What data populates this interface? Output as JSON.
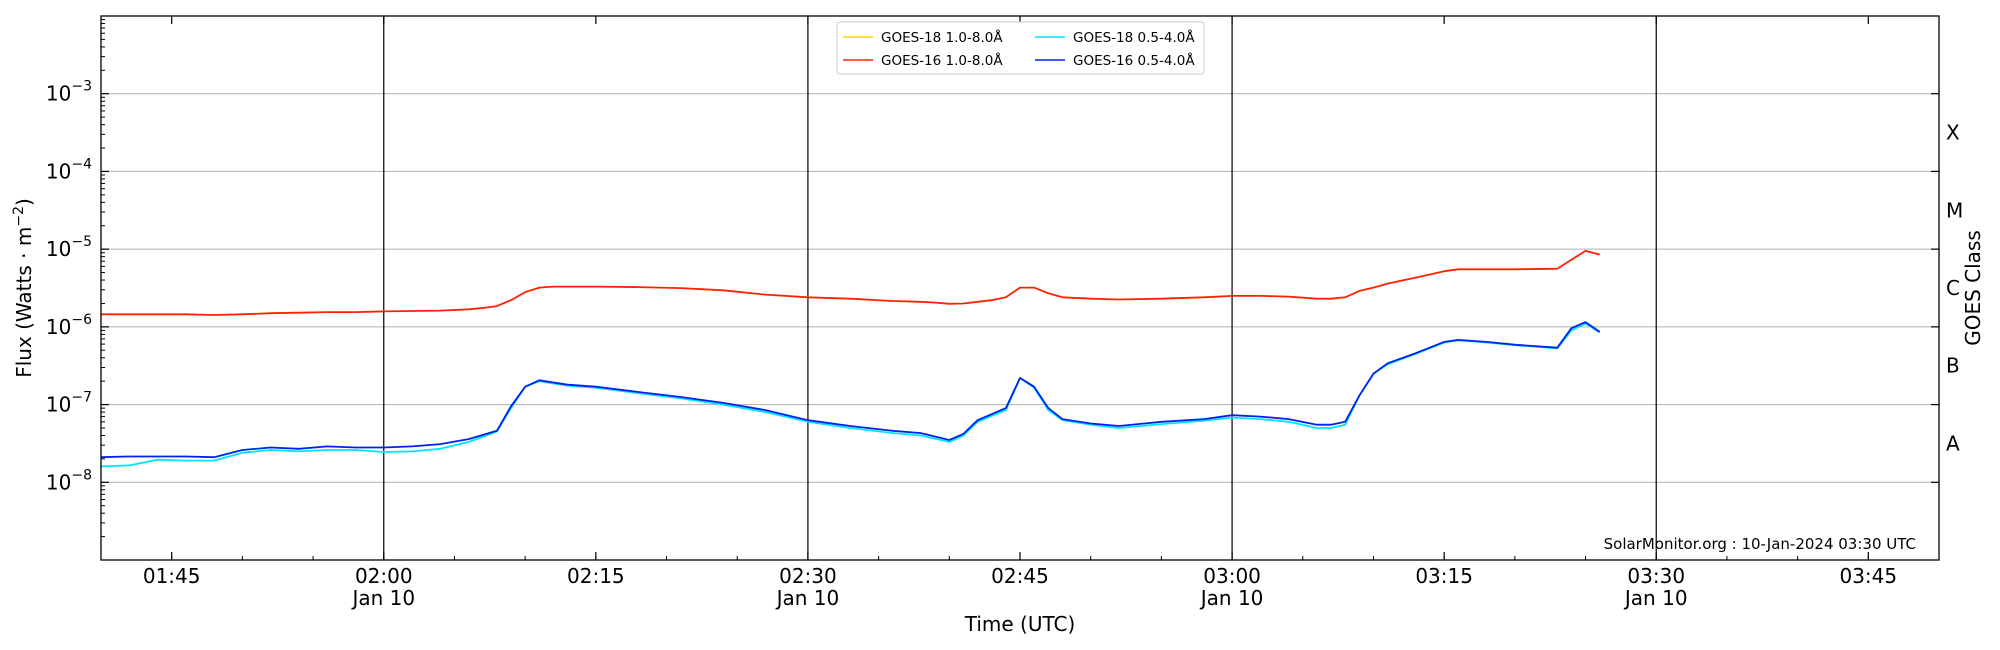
{
  "chart_data": {
    "type": "line",
    "xlabel": "Time (UTC)",
    "ylabel": "Flux (Watts · m",
    "ylabel_exp": "−2",
    "ylabel_close": ")",
    "right_label": "GOES Class",
    "credit": "SolarMonitor.org : 10-Jan-2024 03:30 UTC",
    "xlim": [
      "01:40",
      "03:50"
    ],
    "ylim_log10": [
      -9,
      -2
    ],
    "yscale": "log",
    "grid": "horizontal",
    "legend_placement": "top-center",
    "x_ticks": [
      {
        "t": "01:45",
        "label": "01:45",
        "date": ""
      },
      {
        "t": "02:00",
        "label": "02:00",
        "date": "Jan 10"
      },
      {
        "t": "02:15",
        "label": "02:15",
        "date": ""
      },
      {
        "t": "02:30",
        "label": "02:30",
        "date": "Jan 10"
      },
      {
        "t": "02:45",
        "label": "02:45",
        "date": ""
      },
      {
        "t": "03:00",
        "label": "03:00",
        "date": "Jan 10"
      },
      {
        "t": "03:15",
        "label": "03:15",
        "date": ""
      },
      {
        "t": "03:30",
        "label": "03:30",
        "date": "Jan 10"
      },
      {
        "t": "03:45",
        "label": "03:45",
        "date": ""
      }
    ],
    "vlines": [
      "02:00",
      "02:30",
      "03:00",
      "03:30"
    ],
    "y_ticks": [
      {
        "exp": -8,
        "label": "10",
        "sup": "−8"
      },
      {
        "exp": -7,
        "label": "10",
        "sup": "−7"
      },
      {
        "exp": -6,
        "label": "10",
        "sup": "−6"
      },
      {
        "exp": -5,
        "label": "10",
        "sup": "−5"
      },
      {
        "exp": -4,
        "label": "10",
        "sup": "−4"
      },
      {
        "exp": -3,
        "label": "10",
        "sup": "−3"
      }
    ],
    "classes": [
      {
        "label": "A",
        "exp": -7.5
      },
      {
        "label": "B",
        "exp": -6.5
      },
      {
        "label": "C",
        "exp": -5.5
      },
      {
        "label": "M",
        "exp": -4.5
      },
      {
        "label": "X",
        "exp": -3.5
      }
    ],
    "series": [
      {
        "name": "GOES-18 1.0-8.0Å",
        "color": "#ffd700",
        "times": [],
        "values": []
      },
      {
        "name": "GOES-18 0.5-4.0Å",
        "color": "#00e5ff",
        "times": [
          "01:40",
          "01:42",
          "01:44",
          "01:46",
          "01:48",
          "01:50",
          "01:52",
          "01:54",
          "01:56",
          "01:58",
          "02:00",
          "02:02",
          "02:04",
          "02:06",
          "02:08",
          "02:09",
          "02:10",
          "02:11",
          "02:13",
          "02:15",
          "02:18",
          "02:21",
          "02:24",
          "02:27",
          "02:30",
          "02:33",
          "02:36",
          "02:38",
          "02:40",
          "02:41",
          "02:42",
          "02:44",
          "02:45",
          "02:46",
          "02:47",
          "02:48",
          "02:50",
          "02:52",
          "02:55",
          "02:58",
          "03:00",
          "03:02",
          "03:04",
          "03:06",
          "03:07",
          "03:08",
          "03:09",
          "03:10",
          "03:11",
          "03:13",
          "03:15",
          "03:16",
          "03:18",
          "03:20",
          "03:23",
          "03:24",
          "03:25",
          "03:26"
        ],
        "values": [
          1.6e-08,
          1.65e-08,
          1.95e-08,
          1.9e-08,
          1.9e-08,
          2.4e-08,
          2.6e-08,
          2.5e-08,
          2.6e-08,
          2.6e-08,
          2.45e-08,
          2.5e-08,
          2.7e-08,
          3.3e-08,
          4.5e-08,
          9e-08,
          1.7e-07,
          2e-07,
          1.75e-07,
          1.65e-07,
          1.4e-07,
          1.2e-07,
          1e-07,
          8e-08,
          6e-08,
          5e-08,
          4.3e-08,
          4e-08,
          3.3e-08,
          4e-08,
          6e-08,
          8.5e-08,
          2.2e-07,
          1.65e-07,
          8.5e-08,
          6.3e-08,
          5.5e-08,
          5e-08,
          5.6e-08,
          6.2e-08,
          6.8e-08,
          6.5e-08,
          6e-08,
          5e-08,
          5e-08,
          5.5e-08,
          1.3e-07,
          2.5e-07,
          3.3e-07,
          4.5e-07,
          6.3e-07,
          6.7e-07,
          6.3e-07,
          5.8e-07,
          5.3e-07,
          9e-07,
          1.1e-06,
          8.5e-07
        ]
      },
      {
        "name": "GOES-16 1.0-8.0Å",
        "color": "#ff2200",
        "times": [
          "01:40",
          "01:42",
          "01:44",
          "01:46",
          "01:48",
          "01:50",
          "01:52",
          "01:54",
          "01:56",
          "01:58",
          "02:00",
          "02:02",
          "02:04",
          "02:06",
          "02:07",
          "02:08",
          "02:09",
          "02:10",
          "02:11",
          "02:12",
          "02:15",
          "02:18",
          "02:21",
          "02:24",
          "02:27",
          "02:30",
          "02:33",
          "02:36",
          "02:38",
          "02:39",
          "02:40",
          "02:41",
          "02:42",
          "02:43",
          "02:44",
          "02:45",
          "02:46",
          "02:47",
          "02:48",
          "02:50",
          "02:52",
          "02:55",
          "02:58",
          "03:00",
          "03:02",
          "03:04",
          "03:06",
          "03:07",
          "03:08",
          "03:09",
          "03:10",
          "03:11",
          "03:13",
          "03:15",
          "03:16",
          "03:18",
          "03:20",
          "03:23",
          "03:24",
          "03:25",
          "03:26"
        ],
        "values": [
          1.45e-06,
          1.45e-06,
          1.45e-06,
          1.45e-06,
          1.42e-06,
          1.45e-06,
          1.5e-06,
          1.52e-06,
          1.55e-06,
          1.55e-06,
          1.58e-06,
          1.6e-06,
          1.62e-06,
          1.68e-06,
          1.75e-06,
          1.85e-06,
          2.2e-06,
          2.8e-06,
          3.2e-06,
          3.3e-06,
          3.3e-06,
          3.25e-06,
          3.15e-06,
          2.95e-06,
          2.6e-06,
          2.4e-06,
          2.3e-06,
          2.15e-06,
          2.1e-06,
          2.05e-06,
          1.98e-06,
          2e-06,
          2.1e-06,
          2.2e-06,
          2.4e-06,
          3.2e-06,
          3.2e-06,
          2.7e-06,
          2.4e-06,
          2.3e-06,
          2.25e-06,
          2.3e-06,
          2.4e-06,
          2.5e-06,
          2.5e-06,
          2.45e-06,
          2.3e-06,
          2.3e-06,
          2.4e-06,
          2.9e-06,
          3.2e-06,
          3.6e-06,
          4.3e-06,
          5.2e-06,
          5.5e-06,
          5.5e-06,
          5.5e-06,
          5.6e-06,
          7.3e-06,
          9.5e-06,
          8.5e-06
        ]
      },
      {
        "name": "GOES-16 0.5-4.0Å",
        "color": "#0022ee",
        "times": [
          "01:40",
          "01:42",
          "01:44",
          "01:46",
          "01:48",
          "01:50",
          "01:52",
          "01:54",
          "01:56",
          "01:58",
          "02:00",
          "02:02",
          "02:04",
          "02:06",
          "02:08",
          "02:09",
          "02:10",
          "02:11",
          "02:13",
          "02:15",
          "02:18",
          "02:21",
          "02:24",
          "02:27",
          "02:30",
          "02:33",
          "02:36",
          "02:38",
          "02:40",
          "02:41",
          "02:42",
          "02:44",
          "02:45",
          "02:46",
          "02:47",
          "02:48",
          "02:50",
          "02:52",
          "02:55",
          "02:58",
          "03:00",
          "03:02",
          "03:04",
          "03:06",
          "03:07",
          "03:08",
          "03:09",
          "03:10",
          "03:11",
          "03:13",
          "03:15",
          "03:16",
          "03:18",
          "03:20",
          "03:23",
          "03:24",
          "03:25",
          "03:26"
        ],
        "values": [
          2.1e-08,
          2.15e-08,
          2.15e-08,
          2.15e-08,
          2.1e-08,
          2.6e-08,
          2.8e-08,
          2.7e-08,
          2.9e-08,
          2.8e-08,
          2.8e-08,
          2.9e-08,
          3.1e-08,
          3.6e-08,
          4.6e-08,
          9.5e-08,
          1.7e-07,
          2.05e-07,
          1.8e-07,
          1.7e-07,
          1.45e-07,
          1.25e-07,
          1.05e-07,
          8.5e-08,
          6.3e-08,
          5.3e-08,
          4.6e-08,
          4.3e-08,
          3.5e-08,
          4.2e-08,
          6.3e-08,
          9e-08,
          2.2e-07,
          1.7e-07,
          9e-08,
          6.5e-08,
          5.7e-08,
          5.3e-08,
          6e-08,
          6.5e-08,
          7.3e-08,
          7e-08,
          6.5e-08,
          5.5e-08,
          5.5e-08,
          6e-08,
          1.3e-07,
          2.5e-07,
          3.4e-07,
          4.6e-07,
          6.4e-07,
          6.8e-07,
          6.4e-07,
          5.9e-07,
          5.4e-07,
          9.6e-07,
          1.15e-06,
          8.6e-07
        ]
      }
    ]
  }
}
